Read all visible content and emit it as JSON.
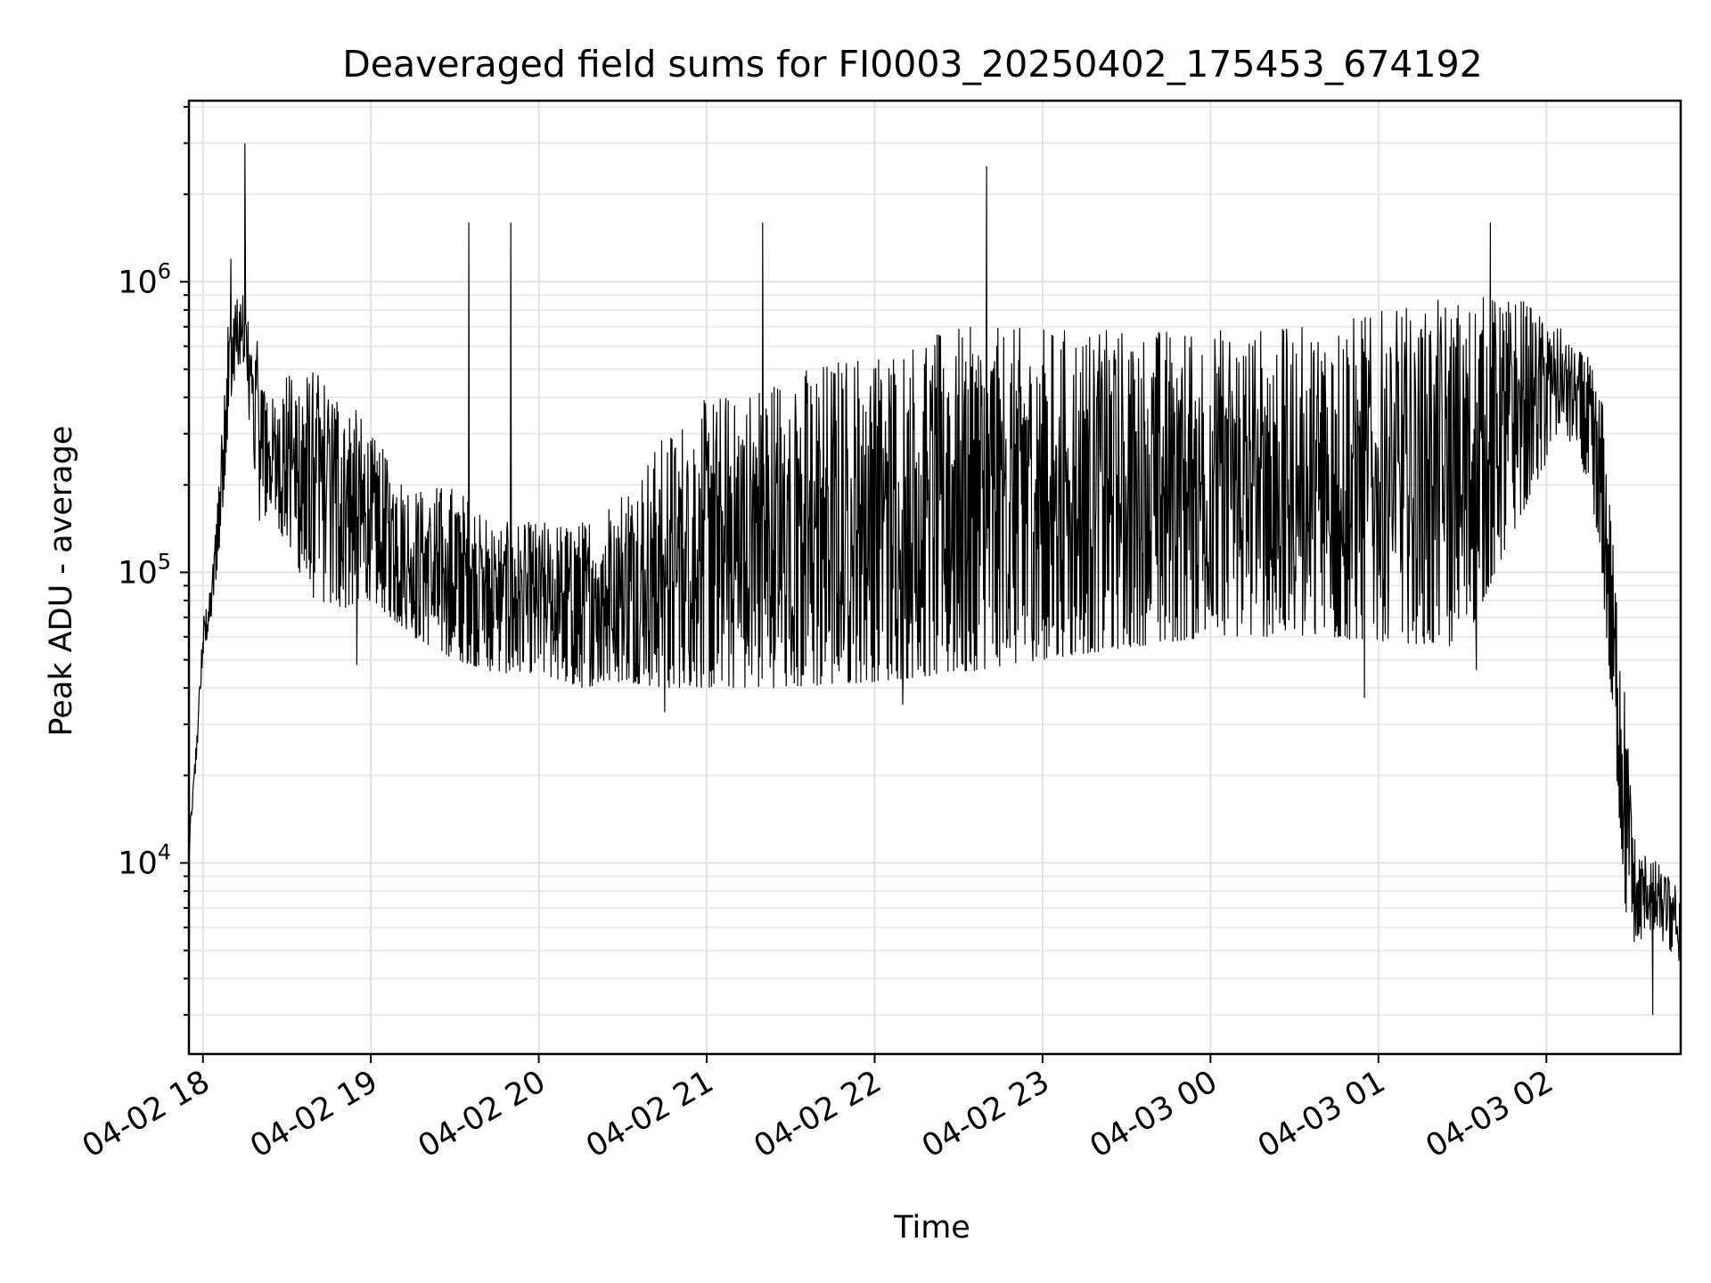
{
  "chart_data": {
    "type": "line",
    "title": "Deaveraged field sums for FI0003_20250402_175453_674192",
    "xlabel": "Time",
    "ylabel": "Peak ADU - average",
    "y_scale": "log",
    "ylim": [
      2200,
      4200000
    ],
    "xlim": [
      "2025-04-02 17:55",
      "2025-04-03 02:48"
    ],
    "grid": true,
    "legend": "none",
    "line_color": "#000000",
    "x_ticks": [
      {
        "value": "2025-04-02 18:00",
        "label": "04-02 18"
      },
      {
        "value": "2025-04-02 19:00",
        "label": "04-02 19"
      },
      {
        "value": "2025-04-02 20:00",
        "label": "04-02 20"
      },
      {
        "value": "2025-04-02 21:00",
        "label": "04-02 21"
      },
      {
        "value": "2025-04-02 22:00",
        "label": "04-02 22"
      },
      {
        "value": "2025-04-02 23:00",
        "label": "04-02 23"
      },
      {
        "value": "2025-04-03 00:00",
        "label": "04-03 00"
      },
      {
        "value": "2025-04-03 01:00",
        "label": "04-03 01"
      },
      {
        "value": "2025-04-03 02:00",
        "label": "04-03 02"
      }
    ],
    "y_ticks": [
      {
        "value": 10000,
        "base": "10",
        "exp": "4"
      },
      {
        "value": 100000,
        "base": "10",
        "exp": "5"
      },
      {
        "value": 1000000,
        "base": "10",
        "exp": "6"
      }
    ],
    "series": [
      {
        "envelope": {
          "x": [
            "2025-04-02 17:55",
            "2025-04-02 17:58",
            "2025-04-02 18:00",
            "2025-04-02 18:03",
            "2025-04-02 18:06",
            "2025-04-02 18:09",
            "2025-04-02 18:12",
            "2025-04-02 18:15",
            "2025-04-02 18:20",
            "2025-04-02 18:25",
            "2025-04-02 18:30",
            "2025-04-02 18:40",
            "2025-04-02 18:50",
            "2025-04-02 19:00",
            "2025-04-02 19:15",
            "2025-04-02 19:30",
            "2025-04-02 19:45",
            "2025-04-02 20:00",
            "2025-04-02 20:15",
            "2025-04-02 20:30",
            "2025-04-02 20:45",
            "2025-04-02 21:00",
            "2025-04-02 21:30",
            "2025-04-02 22:00",
            "2025-04-02 22:30",
            "2025-04-02 23:00",
            "2025-04-02 23:30",
            "2025-04-03 00:00",
            "2025-04-03 00:30",
            "2025-04-03 01:00",
            "2025-04-03 01:30",
            "2025-04-03 01:50",
            "2025-04-03 02:05",
            "2025-04-03 02:10",
            "2025-04-03 02:15",
            "2025-04-03 02:20",
            "2025-04-03 02:24",
            "2025-04-03 02:28",
            "2025-04-03 02:32",
            "2025-04-03 02:36",
            "2025-04-03 02:40",
            "2025-04-03 02:44",
            "2025-04-03 02:48"
          ],
          "low": [
            10000,
            25000,
            50000,
            70000,
            120000,
            300000,
            500000,
            450000,
            150000,
            160000,
            120000,
            80000,
            75000,
            80000,
            60000,
            50000,
            45000,
            45000,
            40000,
            42000,
            40000,
            40000,
            40000,
            42000,
            45000,
            50000,
            55000,
            60000,
            60000,
            58000,
            55000,
            150000,
            300000,
            270000,
            200000,
            90000,
            30000,
            7000,
            5000,
            6000,
            5500,
            5000,
            4500
          ],
          "high": [
            12000,
            30000,
            70000,
            90000,
            250000,
            800000,
            900000,
            900000,
            600000,
            400000,
            500000,
            500000,
            450000,
            300000,
            200000,
            200000,
            150000,
            150000,
            150000,
            200000,
            300000,
            400000,
            500000,
            600000,
            700000,
            700000,
            700000,
            700000,
            700000,
            800000,
            900000,
            900000,
            700000,
            600000,
            550000,
            400000,
            120000,
            40000,
            11000,
            11000,
            10000,
            9000,
            8000
          ]
        },
        "spikes": [
          {
            "x": "2025-04-02 18:15",
            "y": 3000000
          },
          {
            "x": "2025-04-02 22:40",
            "y": 2500000
          },
          {
            "x": "2025-04-02 18:10",
            "y": 1200000
          },
          {
            "x": "2025-04-02 19:35",
            "y": 1600000
          },
          {
            "x": "2025-04-02 19:50",
            "y": 1600000
          },
          {
            "x": "2025-04-02 21:20",
            "y": 1600000
          },
          {
            "x": "2025-04-03 01:40",
            "y": 1600000
          }
        ],
        "dips": [
          {
            "x": "2025-04-02 18:55",
            "y": 48000
          },
          {
            "x": "2025-04-02 20:45",
            "y": 33000
          },
          {
            "x": "2025-04-02 22:10",
            "y": 35000
          },
          {
            "x": "2025-04-03 00:55",
            "y": 37000
          },
          {
            "x": "2025-04-03 01:35",
            "y": 46000
          },
          {
            "x": "2025-04-03 02:38",
            "y": 3000
          }
        ]
      }
    ]
  }
}
